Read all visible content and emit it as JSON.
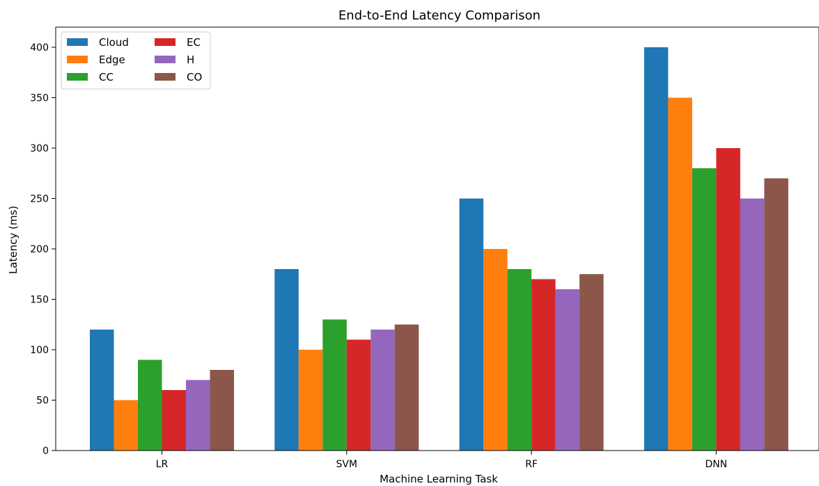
{
  "chart_data": {
    "type": "bar",
    "title": "End-to-End Latency Comparison",
    "xlabel": "Machine Learning Task",
    "ylabel": "Latency (ms)",
    "categories": [
      "LR",
      "SVM",
      "RF",
      "DNN"
    ],
    "ylim": [
      0,
      420
    ],
    "yticks": [
      0,
      50,
      100,
      150,
      200,
      250,
      300,
      350,
      400
    ],
    "grid": false,
    "legend_position": "top-left",
    "legend_columns": 2,
    "series": [
      {
        "name": "Cloud",
        "color": "#1f77b4",
        "values": [
          120,
          180,
          250,
          400
        ]
      },
      {
        "name": "Edge",
        "color": "#ff7f0e",
        "values": [
          50,
          100,
          200,
          350
        ]
      },
      {
        "name": "CC",
        "color": "#2ca02c",
        "values": [
          90,
          130,
          180,
          280
        ]
      },
      {
        "name": "EC",
        "color": "#d62728",
        "values": [
          60,
          110,
          170,
          300
        ]
      },
      {
        "name": "H",
        "color": "#9467bd",
        "values": [
          70,
          120,
          160,
          250
        ]
      },
      {
        "name": "CO",
        "color": "#8c564b",
        "values": [
          80,
          125,
          175,
          270
        ]
      }
    ]
  }
}
